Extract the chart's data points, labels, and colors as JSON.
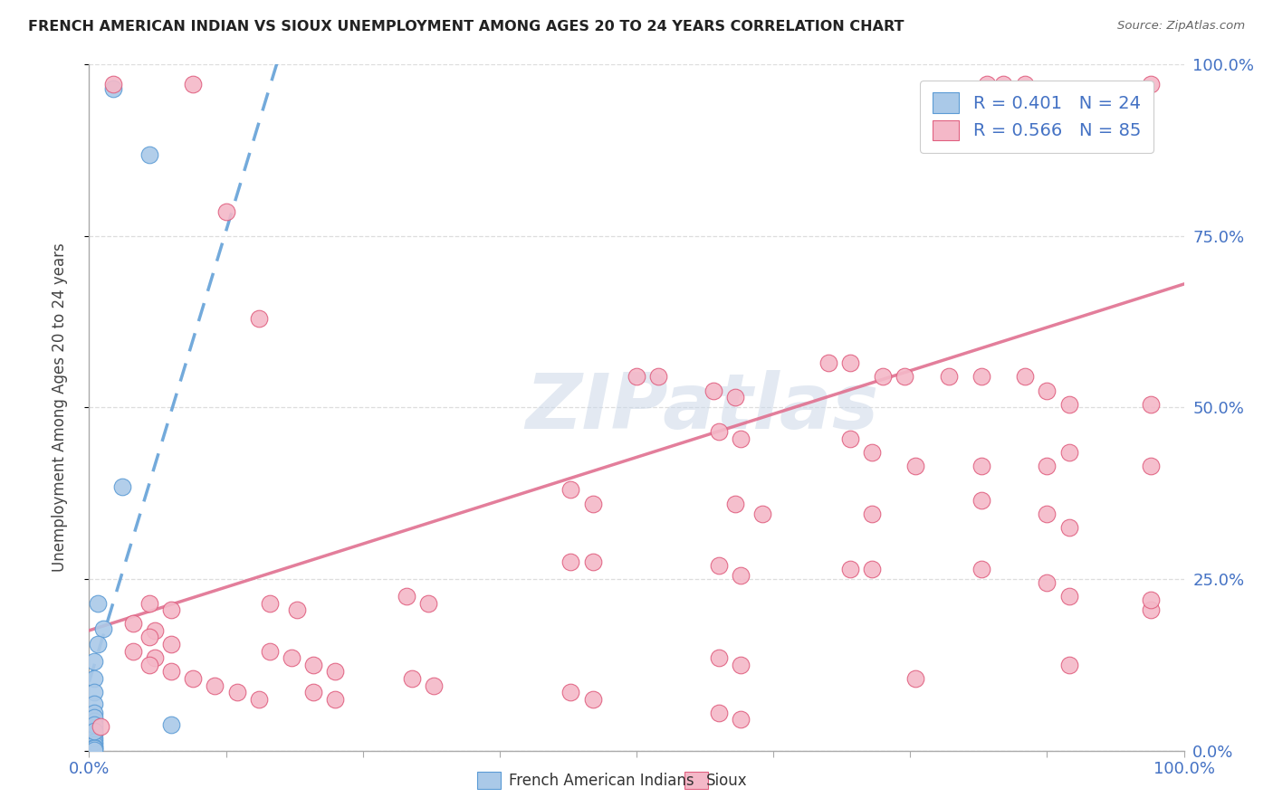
{
  "title": "FRENCH AMERICAN INDIAN VS SIOUX UNEMPLOYMENT AMONG AGES 20 TO 24 YEARS CORRELATION CHART",
  "source": "Source: ZipAtlas.com",
  "ylabel": "Unemployment Among Ages 20 to 24 years",
  "xlim": [
    0,
    1.0
  ],
  "ylim": [
    0,
    1.0
  ],
  "x_tick_positions": [
    0.0,
    0.125,
    0.25,
    0.375,
    0.5,
    0.625,
    0.75,
    0.875,
    1.0
  ],
  "x_tick_labels": [
    "0.0%",
    "",
    "",
    "",
    "",
    "",
    "",
    "",
    "100.0%"
  ],
  "y_tick_positions": [
    0.0,
    0.25,
    0.5,
    0.75,
    1.0
  ],
  "y_tick_labels": [
    "0.0%",
    "25.0%",
    "50.0%",
    "75.0%",
    "100.0%"
  ],
  "background_color": "#ffffff",
  "grid_color": "#dddddd",
  "watermark_text": "ZIPatlas",
  "watermark_color": "#ccd8e8",
  "legend_r1": "R = 0.401",
  "legend_n1": "N = 24",
  "legend_r2": "R = 0.566",
  "legend_n2": "N = 85",
  "legend_label1": "French American Indians",
  "legend_label2": "Sioux",
  "color_blue_fill": "#aac9e8",
  "color_blue_edge": "#5b9bd5",
  "color_pink_fill": "#f4b8c8",
  "color_pink_edge": "#e06080",
  "color_blue_trend": "#5b9bd5",
  "color_pink_trend": "#e07090",
  "color_tick_label": "#4472c4",
  "title_color": "#222222",
  "source_color": "#666666",
  "trend_blue_x0": 0.0,
  "trend_blue_y0": 0.1,
  "trend_blue_x1": 0.175,
  "trend_blue_y1": 1.02,
  "trend_pink_x0": 0.0,
  "trend_pink_y0": 0.175,
  "trend_pink_x1": 1.0,
  "trend_pink_y1": 0.68,
  "scatter_blue": [
    [
      0.022,
      0.965
    ],
    [
      0.055,
      0.868
    ],
    [
      0.03,
      0.385
    ],
    [
      0.008,
      0.215
    ],
    [
      0.013,
      0.178
    ],
    [
      0.008,
      0.155
    ],
    [
      0.005,
      0.13
    ],
    [
      0.005,
      0.105
    ],
    [
      0.005,
      0.085
    ],
    [
      0.005,
      0.068
    ],
    [
      0.005,
      0.055
    ],
    [
      0.005,
      0.043
    ],
    [
      0.005,
      0.033
    ],
    [
      0.005,
      0.025
    ],
    [
      0.005,
      0.018
    ],
    [
      0.005,
      0.013
    ],
    [
      0.005,
      0.008
    ],
    [
      0.005,
      0.005
    ],
    [
      0.005,
      0.003
    ],
    [
      0.005,
      0.001
    ],
    [
      0.005,
      0.048
    ],
    [
      0.005,
      0.038
    ],
    [
      0.005,
      0.028
    ],
    [
      0.075,
      0.038
    ]
  ],
  "scatter_pink": [
    [
      0.022,
      0.972
    ],
    [
      0.095,
      0.972
    ],
    [
      0.82,
      0.972
    ],
    [
      0.835,
      0.972
    ],
    [
      0.855,
      0.972
    ],
    [
      0.97,
      0.972
    ],
    [
      0.125,
      0.785
    ],
    [
      0.155,
      0.63
    ],
    [
      0.5,
      0.545
    ],
    [
      0.52,
      0.545
    ],
    [
      0.57,
      0.525
    ],
    [
      0.59,
      0.515
    ],
    [
      0.675,
      0.565
    ],
    [
      0.695,
      0.565
    ],
    [
      0.725,
      0.545
    ],
    [
      0.745,
      0.545
    ],
    [
      0.785,
      0.545
    ],
    [
      0.815,
      0.545
    ],
    [
      0.855,
      0.545
    ],
    [
      0.875,
      0.525
    ],
    [
      0.895,
      0.505
    ],
    [
      0.97,
      0.505
    ],
    [
      0.575,
      0.465
    ],
    [
      0.595,
      0.455
    ],
    [
      0.695,
      0.455
    ],
    [
      0.715,
      0.435
    ],
    [
      0.755,
      0.415
    ],
    [
      0.815,
      0.415
    ],
    [
      0.875,
      0.415
    ],
    [
      0.895,
      0.435
    ],
    [
      0.97,
      0.415
    ],
    [
      0.44,
      0.38
    ],
    [
      0.46,
      0.36
    ],
    [
      0.59,
      0.36
    ],
    [
      0.615,
      0.345
    ],
    [
      0.715,
      0.345
    ],
    [
      0.815,
      0.365
    ],
    [
      0.875,
      0.345
    ],
    [
      0.895,
      0.325
    ],
    [
      0.97,
      0.205
    ],
    [
      0.44,
      0.275
    ],
    [
      0.46,
      0.275
    ],
    [
      0.575,
      0.27
    ],
    [
      0.595,
      0.255
    ],
    [
      0.695,
      0.265
    ],
    [
      0.715,
      0.265
    ],
    [
      0.815,
      0.265
    ],
    [
      0.875,
      0.245
    ],
    [
      0.895,
      0.225
    ],
    [
      0.97,
      0.22
    ],
    [
      0.29,
      0.225
    ],
    [
      0.31,
      0.215
    ],
    [
      0.165,
      0.215
    ],
    [
      0.19,
      0.205
    ],
    [
      0.055,
      0.215
    ],
    [
      0.075,
      0.205
    ],
    [
      0.04,
      0.185
    ],
    [
      0.06,
      0.175
    ],
    [
      0.055,
      0.165
    ],
    [
      0.075,
      0.155
    ],
    [
      0.04,
      0.145
    ],
    [
      0.06,
      0.135
    ],
    [
      0.055,
      0.125
    ],
    [
      0.075,
      0.115
    ],
    [
      0.095,
      0.105
    ],
    [
      0.115,
      0.095
    ],
    [
      0.135,
      0.085
    ],
    [
      0.155,
      0.075
    ],
    [
      0.165,
      0.145
    ],
    [
      0.185,
      0.135
    ],
    [
      0.205,
      0.125
    ],
    [
      0.225,
      0.115
    ],
    [
      0.295,
      0.105
    ],
    [
      0.315,
      0.095
    ],
    [
      0.205,
      0.085
    ],
    [
      0.225,
      0.075
    ],
    [
      0.44,
      0.085
    ],
    [
      0.46,
      0.075
    ],
    [
      0.575,
      0.135
    ],
    [
      0.595,
      0.125
    ],
    [
      0.575,
      0.055
    ],
    [
      0.595,
      0.045
    ],
    [
      0.755,
      0.105
    ],
    [
      0.895,
      0.125
    ],
    [
      0.01,
      0.035
    ]
  ]
}
